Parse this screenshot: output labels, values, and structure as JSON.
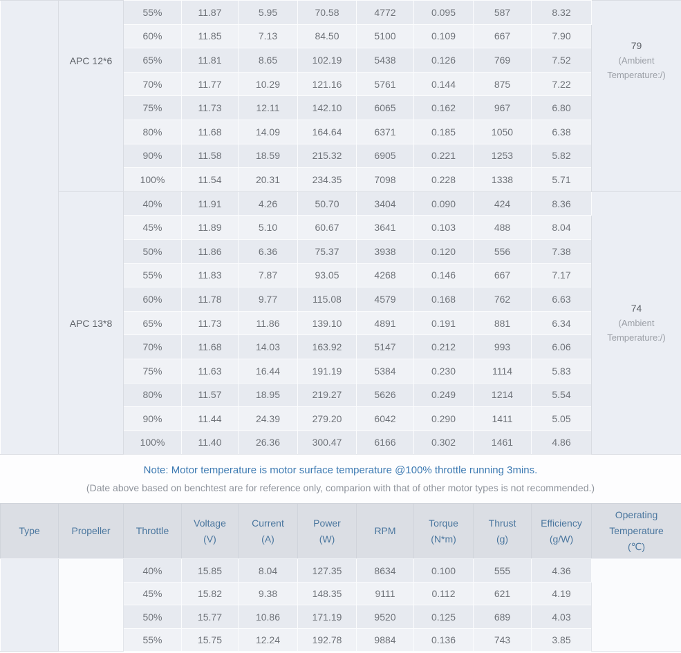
{
  "table1": {
    "groups": [
      {
        "propeller": "APC 12*6",
        "temperature": {
          "value": "79",
          "ambient": "(Ambient Temperature:/)"
        },
        "rows": [
          {
            "throttle": "55%",
            "voltage": "11.87",
            "current": "5.95",
            "power": "70.58",
            "rpm": "4772",
            "torque": "0.095",
            "thrust": "587",
            "efficiency": "8.32"
          },
          {
            "throttle": "60%",
            "voltage": "11.85",
            "current": "7.13",
            "power": "84.50",
            "rpm": "5100",
            "torque": "0.109",
            "thrust": "667",
            "efficiency": "7.90"
          },
          {
            "throttle": "65%",
            "voltage": "11.81",
            "current": "8.65",
            "power": "102.19",
            "rpm": "5438",
            "torque": "0.126",
            "thrust": "769",
            "efficiency": "7.52"
          },
          {
            "throttle": "70%",
            "voltage": "11.77",
            "current": "10.29",
            "power": "121.16",
            "rpm": "5761",
            "torque": "0.144",
            "thrust": "875",
            "efficiency": "7.22"
          },
          {
            "throttle": "75%",
            "voltage": "11.73",
            "current": "12.11",
            "power": "142.10",
            "rpm": "6065",
            "torque": "0.162",
            "thrust": "967",
            "efficiency": "6.80"
          },
          {
            "throttle": "80%",
            "voltage": "11.68",
            "current": "14.09",
            "power": "164.64",
            "rpm": "6371",
            "torque": "0.185",
            "thrust": "1050",
            "efficiency": "6.38"
          },
          {
            "throttle": "90%",
            "voltage": "11.58",
            "current": "18.59",
            "power": "215.32",
            "rpm": "6905",
            "torque": "0.221",
            "thrust": "1253",
            "efficiency": "5.82"
          },
          {
            "throttle": "100%",
            "voltage": "11.54",
            "current": "20.31",
            "power": "234.35",
            "rpm": "7098",
            "torque": "0.228",
            "thrust": "1338",
            "efficiency": "5.71"
          }
        ]
      },
      {
        "propeller": "APC 13*8",
        "temperature": {
          "value": "74",
          "ambient": "(Ambient Temperature:/)"
        },
        "rows": [
          {
            "throttle": "40%",
            "voltage": "11.91",
            "current": "4.26",
            "power": "50.70",
            "rpm": "3404",
            "torque": "0.090",
            "thrust": "424",
            "efficiency": "8.36"
          },
          {
            "throttle": "45%",
            "voltage": "11.89",
            "current": "5.10",
            "power": "60.67",
            "rpm": "3641",
            "torque": "0.103",
            "thrust": "488",
            "efficiency": "8.04"
          },
          {
            "throttle": "50%",
            "voltage": "11.86",
            "current": "6.36",
            "power": "75.37",
            "rpm": "3938",
            "torque": "0.120",
            "thrust": "556",
            "efficiency": "7.38"
          },
          {
            "throttle": "55%",
            "voltage": "11.83",
            "current": "7.87",
            "power": "93.05",
            "rpm": "4268",
            "torque": "0.146",
            "thrust": "667",
            "efficiency": "7.17"
          },
          {
            "throttle": "60%",
            "voltage": "11.78",
            "current": "9.77",
            "power": "115.08",
            "rpm": "4579",
            "torque": "0.168",
            "thrust": "762",
            "efficiency": "6.63"
          },
          {
            "throttle": "65%",
            "voltage": "11.73",
            "current": "11.86",
            "power": "139.10",
            "rpm": "4891",
            "torque": "0.191",
            "thrust": "881",
            "efficiency": "6.34"
          },
          {
            "throttle": "70%",
            "voltage": "11.68",
            "current": "14.03",
            "power": "163.92",
            "rpm": "5147",
            "torque": "0.212",
            "thrust": "993",
            "efficiency": "6.06"
          },
          {
            "throttle": "75%",
            "voltage": "11.63",
            "current": "16.44",
            "power": "191.19",
            "rpm": "5384",
            "torque": "0.230",
            "thrust": "1114",
            "efficiency": "5.83"
          },
          {
            "throttle": "80%",
            "voltage": "11.57",
            "current": "18.95",
            "power": "219.27",
            "rpm": "5626",
            "torque": "0.249",
            "thrust": "1214",
            "efficiency": "5.54"
          },
          {
            "throttle": "90%",
            "voltage": "11.44",
            "current": "24.39",
            "power": "279.20",
            "rpm": "6042",
            "torque": "0.290",
            "thrust": "1411",
            "efficiency": "5.05"
          },
          {
            "throttle": "100%",
            "voltage": "11.40",
            "current": "26.36",
            "power": "300.47",
            "rpm": "6166",
            "torque": "0.302",
            "thrust": "1461",
            "efficiency": "4.86"
          }
        ]
      }
    ]
  },
  "note": {
    "line1": "Note: Motor temperature is motor surface temperature @100% throttle running 3mins.",
    "line2": "(Date above based on benchtest are for reference only, comparion with that of other motor types is not recommended.)"
  },
  "table2": {
    "headers": [
      {
        "label": "Type",
        "unit": ""
      },
      {
        "label": "Propeller",
        "unit": ""
      },
      {
        "label": "Throttle",
        "unit": ""
      },
      {
        "label": "Voltage",
        "unit": "(V)"
      },
      {
        "label": "Current",
        "unit": "(A)"
      },
      {
        "label": "Power",
        "unit": "(W)"
      },
      {
        "label": "RPM",
        "unit": ""
      },
      {
        "label": "Torque",
        "unit": "(N*m)"
      },
      {
        "label": "Thrust",
        "unit": "(g)"
      },
      {
        "label": "Efficiency",
        "unit": "(g/W)"
      },
      {
        "label": "Operating Temperature",
        "unit": "(℃)"
      }
    ],
    "group": {
      "rows": [
        {
          "throttle": "40%",
          "voltage": "15.85",
          "current": "8.04",
          "power": "127.35",
          "rpm": "8634",
          "torque": "0.100",
          "thrust": "555",
          "efficiency": "4.36"
        },
        {
          "throttle": "45%",
          "voltage": "15.82",
          "current": "9.38",
          "power": "148.35",
          "rpm": "9111",
          "torque": "0.112",
          "thrust": "621",
          "efficiency": "4.19"
        },
        {
          "throttle": "50%",
          "voltage": "15.77",
          "current": "10.86",
          "power": "171.19",
          "rpm": "9520",
          "torque": "0.125",
          "thrust": "689",
          "efficiency": "4.03"
        },
        {
          "throttle": "55%",
          "voltage": "15.75",
          "current": "12.24",
          "power": "192.78",
          "rpm": "9884",
          "torque": "0.136",
          "thrust": "743",
          "efficiency": "3.85"
        }
      ]
    }
  },
  "colors": {
    "header_bg": "#dbdee4",
    "header_text": "#4a769e",
    "note_primary": "#3d7ab2",
    "note_secondary": "#8f949c",
    "row_dark": "#e7eaf0",
    "row_light": "#f0f2f6",
    "merged_cell_bg": "#ebeef4",
    "data_text": "#6f7379"
  }
}
